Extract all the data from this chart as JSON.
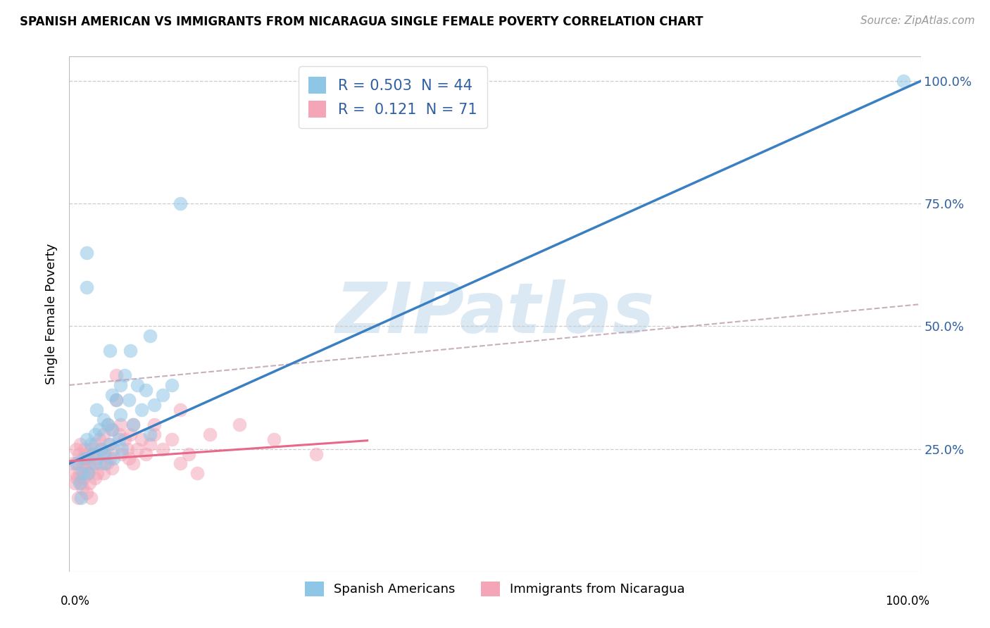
{
  "title": "SPANISH AMERICAN VS IMMIGRANTS FROM NICARAGUA SINGLE FEMALE POVERTY CORRELATION CHART",
  "source": "Source: ZipAtlas.com",
  "ylabel": "Single Female Poverty",
  "color_blue": "#8ec6e6",
  "color_pink": "#f4a6b8",
  "line_blue": "#3a7fc1",
  "line_pink": "#e8688a",
  "line_gray_dashed": "#c0a0b0",
  "r1": 0.503,
  "r2": 0.121,
  "n1": 44,
  "n2": 71,
  "blue_intercept": 0.22,
  "blue_slope": 0.78,
  "pink_solid_intercept": 0.225,
  "pink_solid_slope": 0.12,
  "gray_dashed_intercept": 0.38,
  "gray_dashed_slope": 0.165,
  "watermark_text": "ZIPatlas",
  "watermark_color": "#cce0f0",
  "ytick_values": [
    0.25,
    0.5,
    0.75,
    1.0
  ],
  "ytick_labels": [
    "25.0%",
    "50.0%",
    "75.0%",
    "100.0%"
  ],
  "xlim": [
    0.0,
    1.0
  ],
  "ylim": [
    0.0,
    1.05
  ],
  "legend1_text": "R = 0.503  N = 44",
  "legend2_text": "R =  0.121  N = 71",
  "legend_text_color": "#3060a0",
  "bottom_label1": "Spanish Americans",
  "bottom_label2": "Immigrants from Nicaragua",
  "blue_scatter_x": [
    0.008,
    0.012,
    0.015,
    0.018,
    0.02,
    0.02,
    0.02,
    0.025,
    0.028,
    0.03,
    0.03,
    0.032,
    0.035,
    0.038,
    0.04,
    0.04,
    0.042,
    0.045,
    0.048,
    0.05,
    0.05,
    0.052,
    0.055,
    0.058,
    0.06,
    0.06,
    0.062,
    0.065,
    0.07,
    0.075,
    0.08,
    0.085,
    0.09,
    0.095,
    0.1,
    0.11,
    0.12,
    0.014,
    0.022,
    0.048,
    0.072,
    0.095,
    0.13,
    0.98
  ],
  "blue_scatter_y": [
    0.22,
    0.18,
    0.2,
    0.23,
    0.65,
    0.58,
    0.27,
    0.26,
    0.24,
    0.28,
    0.22,
    0.33,
    0.29,
    0.25,
    0.31,
    0.24,
    0.22,
    0.3,
    0.26,
    0.36,
    0.29,
    0.23,
    0.35,
    0.27,
    0.38,
    0.32,
    0.25,
    0.4,
    0.35,
    0.3,
    0.38,
    0.33,
    0.37,
    0.28,
    0.34,
    0.36,
    0.38,
    0.15,
    0.2,
    0.45,
    0.45,
    0.48,
    0.75,
    1.0
  ],
  "pink_scatter_x": [
    0.005,
    0.006,
    0.007,
    0.008,
    0.009,
    0.01,
    0.01,
    0.011,
    0.012,
    0.013,
    0.014,
    0.015,
    0.015,
    0.016,
    0.017,
    0.018,
    0.019,
    0.02,
    0.02,
    0.021,
    0.022,
    0.023,
    0.024,
    0.025,
    0.025,
    0.026,
    0.028,
    0.03,
    0.03,
    0.032,
    0.033,
    0.035,
    0.036,
    0.038,
    0.04,
    0.04,
    0.042,
    0.044,
    0.045,
    0.046,
    0.048,
    0.05,
    0.05,
    0.052,
    0.055,
    0.058,
    0.06,
    0.062,
    0.065,
    0.068,
    0.07,
    0.072,
    0.075,
    0.08,
    0.085,
    0.09,
    0.095,
    0.1,
    0.11,
    0.12,
    0.13,
    0.14,
    0.15,
    0.055,
    0.075,
    0.1,
    0.13,
    0.165,
    0.2,
    0.24,
    0.29
  ],
  "pink_scatter_y": [
    0.22,
    0.18,
    0.2,
    0.25,
    0.19,
    0.22,
    0.15,
    0.24,
    0.2,
    0.26,
    0.18,
    0.23,
    0.17,
    0.22,
    0.19,
    0.25,
    0.21,
    0.23,
    0.16,
    0.24,
    0.2,
    0.22,
    0.18,
    0.25,
    0.15,
    0.21,
    0.24,
    0.26,
    0.19,
    0.23,
    0.2,
    0.27,
    0.22,
    0.25,
    0.28,
    0.2,
    0.24,
    0.22,
    0.3,
    0.26,
    0.23,
    0.29,
    0.21,
    0.25,
    0.4,
    0.28,
    0.3,
    0.24,
    0.27,
    0.25,
    0.23,
    0.28,
    0.22,
    0.25,
    0.27,
    0.24,
    0.26,
    0.28,
    0.25,
    0.27,
    0.22,
    0.24,
    0.2,
    0.35,
    0.3,
    0.3,
    0.33,
    0.28,
    0.3,
    0.27,
    0.24
  ]
}
